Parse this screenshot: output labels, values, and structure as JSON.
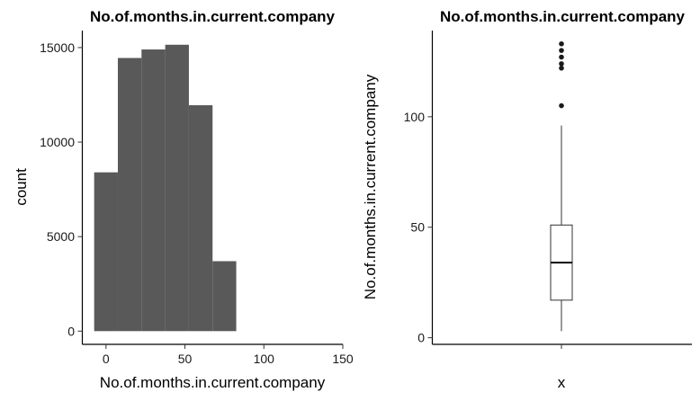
{
  "chart_data": [
    {
      "type": "bar",
      "subtype": "histogram",
      "title": "No.of.months.in.current.company",
      "xlabel": "No.of.months.in.current.company",
      "ylabel": "count",
      "bins": [
        {
          "x0": -7.5,
          "x1": 7.5,
          "count": 8400
        },
        {
          "x0": 7.5,
          "x1": 22.5,
          "count": 14450
        },
        {
          "x0": 22.5,
          "x1": 37.5,
          "count": 14900
        },
        {
          "x0": 37.5,
          "x1": 52.5,
          "count": 15150
        },
        {
          "x0": 52.5,
          "x1": 67.5,
          "count": 11950
        },
        {
          "x0": 67.5,
          "x1": 82.5,
          "count": 3700
        }
      ],
      "xlim": [
        -15,
        150
      ],
      "ylim": [
        -700,
        15900
      ],
      "xticks": [
        0,
        50,
        100,
        150
      ],
      "yticks": [
        0,
        5000,
        10000,
        15000
      ],
      "xtick_labels": [
        "0",
        "50",
        "100",
        "150"
      ],
      "ytick_labels": [
        "0",
        "5000",
        "10000",
        "15000"
      ],
      "grid": false,
      "colors": {
        "bar": "#595959"
      }
    },
    {
      "type": "box",
      "title": "No.of.months.in.current.company",
      "xlabel": "x",
      "ylabel": "No.of.months.in.current.company",
      "category": "",
      "stats": {
        "min": 3,
        "q1": 17,
        "median": 34,
        "q3": 51,
        "max": 96
      },
      "outliers": [
        105,
        122,
        124,
        127,
        130,
        133
      ],
      "ylim": [
        -3,
        139
      ],
      "yticks": [
        0,
        50,
        100
      ],
      "ytick_labels": [
        "0",
        "50",
        "100"
      ],
      "grid": false,
      "colors": {
        "outlier": "#1a1a1a",
        "box_fill": "#ffffff",
        "box_stroke": "#333333"
      }
    }
  ]
}
